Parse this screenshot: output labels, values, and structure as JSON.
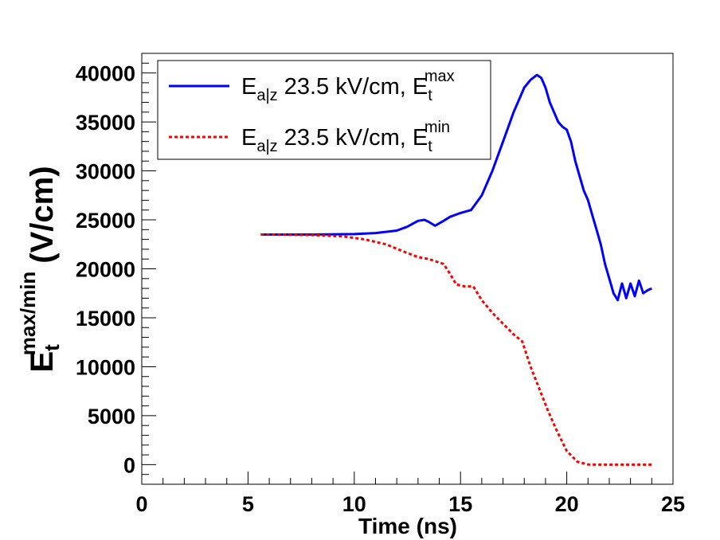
{
  "chart_data": {
    "type": "line",
    "title": "",
    "xlabel": "Time (ns)",
    "ylabel": {
      "base": "E",
      "sub": "t",
      "sup": "max/min",
      "units": "(V/cm)"
    },
    "xlim": [
      0,
      25
    ],
    "ylim": [
      -2000,
      42000
    ],
    "x_ticks": [
      0,
      5,
      10,
      15,
      20,
      25
    ],
    "y_ticks": [
      0,
      5000,
      10000,
      15000,
      20000,
      25000,
      30000,
      35000,
      40000
    ],
    "x_tick_labels": [
      "0",
      "5",
      "10",
      "15",
      "20",
      "25"
    ],
    "y_tick_labels": [
      "0",
      "5000",
      "10000",
      "15000",
      "20000",
      "25000",
      "30000",
      "35000",
      "40000"
    ],
    "grid": false,
    "legend_position": "top-left",
    "series": [
      {
        "name": "E_a|z 23.5 kV/cm, E_t^max",
        "legend": {
          "pre": "E",
          "sub": "a|z",
          "mid": " 23.5 kV/cm, E",
          "sub2": "t",
          "sup2": "max"
        },
        "color": "#0000ff",
        "style": "solid",
        "x": [
          5.6,
          8.0,
          10.0,
          11.0,
          12.0,
          12.5,
          13.0,
          13.3,
          13.5,
          13.8,
          14.2,
          14.5,
          15.0,
          15.5,
          16.0,
          16.5,
          17.0,
          17.5,
          18.0,
          18.3,
          18.6,
          18.8,
          19.0,
          19.2,
          19.4,
          19.6,
          19.8,
          20.0,
          20.2,
          20.4,
          20.6,
          20.8,
          21.0,
          21.2,
          21.4,
          21.6,
          21.8,
          22.0,
          22.2,
          22.4,
          22.6,
          22.8,
          23.0,
          23.2,
          23.4,
          23.6,
          23.8,
          24.0
        ],
        "values": [
          23500,
          23500,
          23550,
          23650,
          23900,
          24300,
          24900,
          25000,
          24800,
          24400,
          24900,
          25300,
          25700,
          26000,
          27500,
          30000,
          33000,
          36000,
          38500,
          39300,
          39800,
          39500,
          38500,
          37000,
          36000,
          35000,
          34500,
          34200,
          33000,
          31000,
          29500,
          28000,
          27000,
          25500,
          24000,
          22500,
          20500,
          19000,
          17500,
          16800,
          18500,
          17000,
          18500,
          17200,
          18800,
          17500,
          17800,
          18000
        ]
      },
      {
        "name": "E_a|z 23.5 kV/cm, E_t^min",
        "legend": {
          "pre": "E",
          "sub": "a|z",
          "mid": " 23.5 kV/cm, E",
          "sub2": "t",
          "sup2": "min"
        },
        "color": "#ff0000",
        "style": "dashed",
        "x": [
          5.6,
          8.0,
          9.5,
          10.5,
          11.5,
          12.5,
          13.0,
          13.5,
          14.2,
          14.5,
          14.8,
          15.2,
          15.6,
          16.0,
          16.5,
          17.0,
          17.5,
          17.9,
          18.3,
          18.7,
          19.1,
          19.5,
          20.0,
          20.5,
          21.0,
          21.5,
          22.0,
          23.0,
          24.0
        ],
        "values": [
          23500,
          23450,
          23300,
          23000,
          22500,
          21600,
          21200,
          21000,
          20500,
          19500,
          18400,
          18200,
          18200,
          16800,
          15500,
          14400,
          13300,
          12600,
          10000,
          7800,
          5600,
          3600,
          1400,
          300,
          20,
          0,
          0,
          0,
          0
        ]
      }
    ]
  }
}
